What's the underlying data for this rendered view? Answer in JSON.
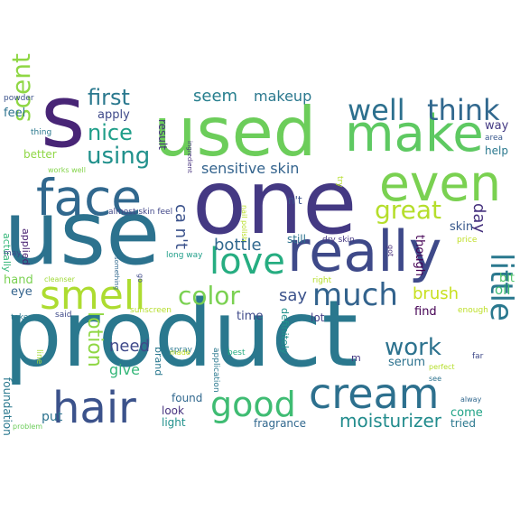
{
  "word_cloud": {
    "words": [
      {
        "text": "product",
        "color": "#2a788e"
      },
      {
        "text": "use",
        "color": "#2c728e"
      },
      {
        "text": "one",
        "color": "#443983"
      },
      {
        "text": "used",
        "color": "#6ccd5a"
      },
      {
        "text": "s",
        "color": "#482576"
      },
      {
        "text": "really",
        "color": "#3e4989"
      },
      {
        "text": "make",
        "color": "#5ec962"
      },
      {
        "text": "face",
        "color": "#31688e"
      },
      {
        "text": "even",
        "color": "#7ad151"
      },
      {
        "text": "cream",
        "color": "#2d708e"
      },
      {
        "text": "hair",
        "color": "#3b528b"
      },
      {
        "text": "smell",
        "color": "#addc30"
      },
      {
        "text": "love",
        "color": "#26ad81"
      },
      {
        "text": "good",
        "color": "#3fbc73"
      },
      {
        "text": "much",
        "color": "#33638d"
      },
      {
        "text": "little",
        "color": "#2a788e"
      },
      {
        "text": "well",
        "color": "#2d708e"
      },
      {
        "text": "think",
        "color": "#31688e"
      },
      {
        "text": "great",
        "color": "#b5de2b"
      },
      {
        "text": "scent",
        "color": "#8fd744"
      },
      {
        "text": "color",
        "color": "#7ad151"
      },
      {
        "text": "work",
        "color": "#2c728e"
      },
      {
        "text": "using",
        "color": "#21918c"
      },
      {
        "text": "first",
        "color": "#2a788e"
      },
      {
        "text": "nice",
        "color": "#1f9e89"
      },
      {
        "text": "moisturizer",
        "color": "#228c8d"
      },
      {
        "text": "lotion",
        "color": "#8fd744"
      },
      {
        "text": "sensitive skin",
        "color": "#33638d"
      },
      {
        "text": "say",
        "color": "#3b528b"
      },
      {
        "text": "brush",
        "color": "#c8e020"
      },
      {
        "text": "seem",
        "color": "#277f8e"
      },
      {
        "text": "makeup",
        "color": "#2a788e"
      },
      {
        "text": "day",
        "color": "#46327e"
      },
      {
        "text": "bottle",
        "color": "#31688e"
      },
      {
        "text": "ca n't",
        "color": "#3b528b"
      },
      {
        "text": "need",
        "color": "#3e4989"
      },
      {
        "text": "give",
        "color": "#35b779"
      },
      {
        "text": "oil",
        "color": "#3fbc73"
      },
      {
        "text": "bit",
        "color": "#52c569"
      },
      {
        "text": "fragrance",
        "color": "#31688e"
      },
      {
        "text": "foundation",
        "color": "#2a788e"
      },
      {
        "text": "found",
        "color": "#31688e"
      },
      {
        "text": "put",
        "color": "#2c728e"
      },
      {
        "text": "light",
        "color": "#21918c"
      },
      {
        "text": "look",
        "color": "#46327e"
      },
      {
        "text": "time",
        "color": "#3e4989"
      },
      {
        "text": "find",
        "color": "#440154"
      },
      {
        "text": "serum",
        "color": "#2c728e"
      },
      {
        "text": "though",
        "color": "#440154"
      },
      {
        "text": "skin",
        "color": "#38588c"
      },
      {
        "text": "come",
        "color": "#20a386"
      },
      {
        "text": "tried",
        "color": "#2a788e"
      },
      {
        "text": "help",
        "color": "#2a788e"
      },
      {
        "text": "way",
        "color": "#443983"
      },
      {
        "text": "apply",
        "color": "#3e4989"
      },
      {
        "text": "result",
        "color": "#46327e"
      },
      {
        "text": "feel",
        "color": "#2c728e"
      },
      {
        "text": "still",
        "color": "#2c728e"
      },
      {
        "text": "lot",
        "color": "#433e85"
      },
      {
        "text": "actually",
        "color": "#35b779"
      },
      {
        "text": "applied",
        "color": "#481f70"
      },
      {
        "text": "better",
        "color": "#8fd744"
      },
      {
        "text": "eye",
        "color": "#33638d"
      },
      {
        "text": "hand",
        "color": "#7ad151"
      },
      {
        "text": "definitely",
        "color": "#21918c"
      },
      {
        "text": "brand",
        "color": "#2a788e"
      },
      {
        "text": "n't",
        "color": "#3b528b"
      },
      {
        "text": "m",
        "color": "#443983"
      },
      {
        "text": "dry skin",
        "color": "#453781"
      },
      {
        "text": "almost skin feel",
        "color": "#404688"
      },
      {
        "text": "long way",
        "color": "#1f9e89"
      },
      {
        "text": "works well",
        "color": "#84d44b"
      },
      {
        "text": "nail polish",
        "color": "#b8de29"
      },
      {
        "text": "ingredient",
        "color": "#46327e"
      },
      {
        "text": "try",
        "color": "#b5de2b"
      },
      {
        "text": "price",
        "color": "#c0df25"
      },
      {
        "text": "got",
        "color": "#472d7b"
      },
      {
        "text": "right",
        "color": "#b5de2b"
      },
      {
        "text": "enough",
        "color": "#bddf26"
      },
      {
        "text": "sunscreen",
        "color": "#b5de2b"
      },
      {
        "text": "said",
        "color": "#3e4989"
      },
      {
        "text": "take",
        "color": "#2a788e"
      },
      {
        "text": "cleanser",
        "color": "#a0da39"
      },
      {
        "text": "powder",
        "color": "#3b528b"
      },
      {
        "text": "thing",
        "color": "#2a788e"
      },
      {
        "text": "area",
        "color": "#38588c"
      },
      {
        "text": "may",
        "color": "#3e4989"
      },
      {
        "text": "go",
        "color": "#3e4989"
      },
      {
        "text": "something",
        "color": "#31688e"
      },
      {
        "text": "spray",
        "color": "#2a788e"
      },
      {
        "text": "made",
        "color": "#c2df23"
      },
      {
        "text": "best",
        "color": "#26ad81"
      },
      {
        "text": "application",
        "color": "#2a788e"
      },
      {
        "text": "line",
        "color": "#a5db36"
      },
      {
        "text": "problem",
        "color": "#6ccd5a"
      },
      {
        "text": "see",
        "color": "#2c728e"
      },
      {
        "text": "perfect",
        "color": "#b5de2b"
      },
      {
        "text": "alway",
        "color": "#31688e"
      },
      {
        "text": "far",
        "color": "#3e4989"
      }
    ]
  }
}
